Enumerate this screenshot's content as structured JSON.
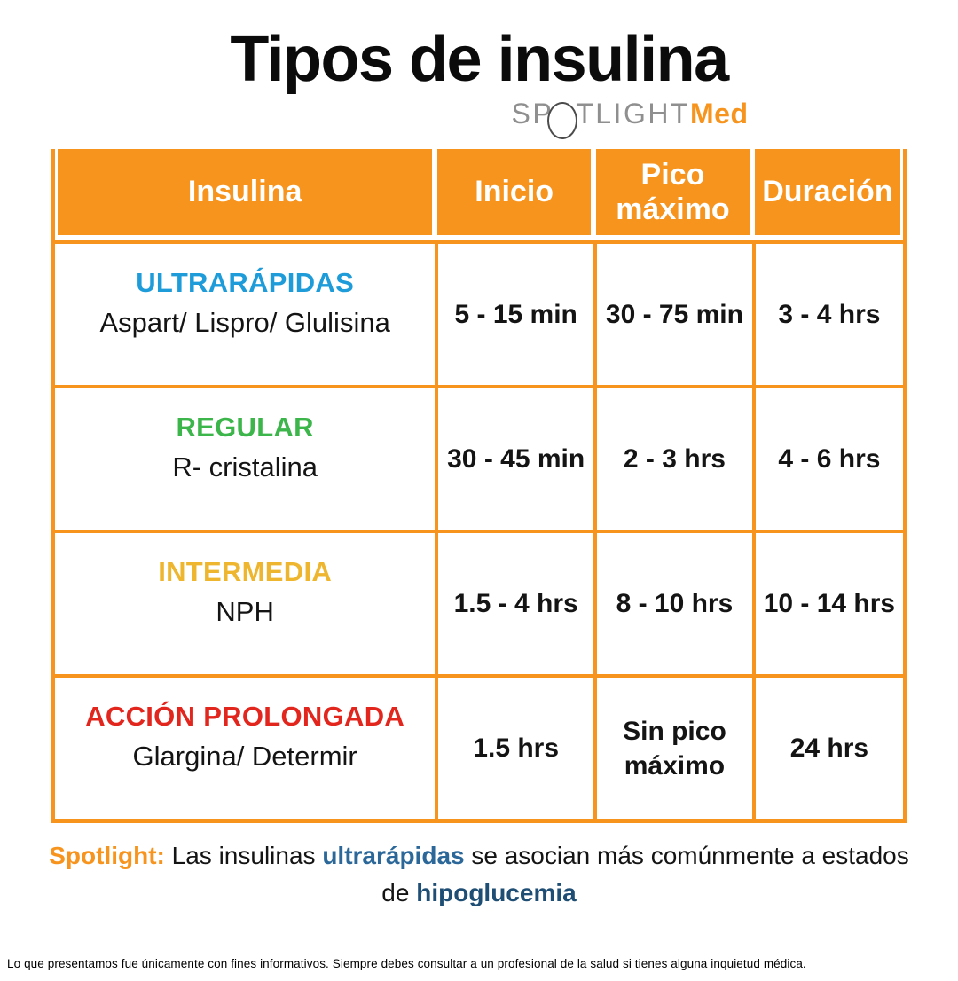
{
  "title": "Tipos de insulina",
  "logo": {
    "prefix": "SP",
    "suffix": "TLIGHT",
    "accent": "Med",
    "circle_icon": "spotlight-circle"
  },
  "table": {
    "headers": [
      "Insulina",
      "Inicio",
      "Pico máximo",
      "Duración"
    ],
    "rows": [
      {
        "name": "ULTRARÁPIDAS",
        "color": "#1E9CD9",
        "drugs": "Aspart/ Lispro/ Glulisina",
        "inicio": "5 - 15 min",
        "pico": "30 - 75 min",
        "duracion": "3 - 4 hrs"
      },
      {
        "name": "REGULAR",
        "color": "#3CB54A",
        "drugs": "R- cristalina",
        "inicio": "30 - 45 min",
        "pico": "2 - 3 hrs",
        "duracion": "4 - 6 hrs"
      },
      {
        "name": "INTERMEDIA",
        "color": "#EEB62F",
        "drugs": "NPH",
        "inicio": "1.5 - 4 hrs",
        "pico": "8 - 10 hrs",
        "duracion": "10 - 14 hrs"
      },
      {
        "name": "ACCIÓN PROLONGADA",
        "color": "#E2261D",
        "drugs": "Glargina/ Determir",
        "inicio": "1.5 hrs",
        "pico": "Sin pico máximo",
        "duracion": "24 hrs"
      }
    ]
  },
  "spotlight": {
    "label": "Spotlight:",
    "segments": [
      {
        "text": " Las insulinas ",
        "bold": false,
        "color": null
      },
      {
        "text": "ultrarápidas",
        "bold": true,
        "color": "#2B6899"
      },
      {
        "text": " se asocian más comúnmente a estados de ",
        "bold": false,
        "color": null
      },
      {
        "text": "hipoglucemia",
        "bold": true,
        "color": "#1F4E75"
      }
    ]
  },
  "disclaimer": "Lo que presentamos fue únicamente con fines informativos. Siempre debes consultar a un profesional de la salud si tienes alguna inquietud médica.",
  "colors": {
    "orange": "#F7941E",
    "header_text": "#FFFFFF",
    "logo_gray": "#8F8F8F",
    "spotlight_blue": "#2B6899",
    "spotlight_navy": "#1F4E75"
  },
  "chart_data": {
    "type": "table",
    "title": "Tipos de insulina",
    "columns": [
      "Insulina",
      "Inicio",
      "Pico máximo",
      "Duración"
    ],
    "rows": [
      [
        "ULTRARÁPIDAS (Aspart/ Lispro/ Glulisina)",
        "5 - 15 min",
        "30 - 75 min",
        "3 - 4 hrs"
      ],
      [
        "REGULAR (R- cristalina)",
        "30 - 45 min",
        "2 - 3 hrs",
        "4 - 6 hrs"
      ],
      [
        "INTERMEDIA (NPH)",
        "1.5 - 4 hrs",
        "8 - 10 hrs",
        "10 - 14 hrs"
      ],
      [
        "ACCIÓN PROLONGADA (Glargina/ Determir)",
        "1.5 hrs",
        "Sin pico máximo",
        "24 hrs"
      ]
    ],
    "note": "Spotlight: Las insulinas ultrarápidas se asocian más comúnmente a estados de hipoglucemia"
  }
}
